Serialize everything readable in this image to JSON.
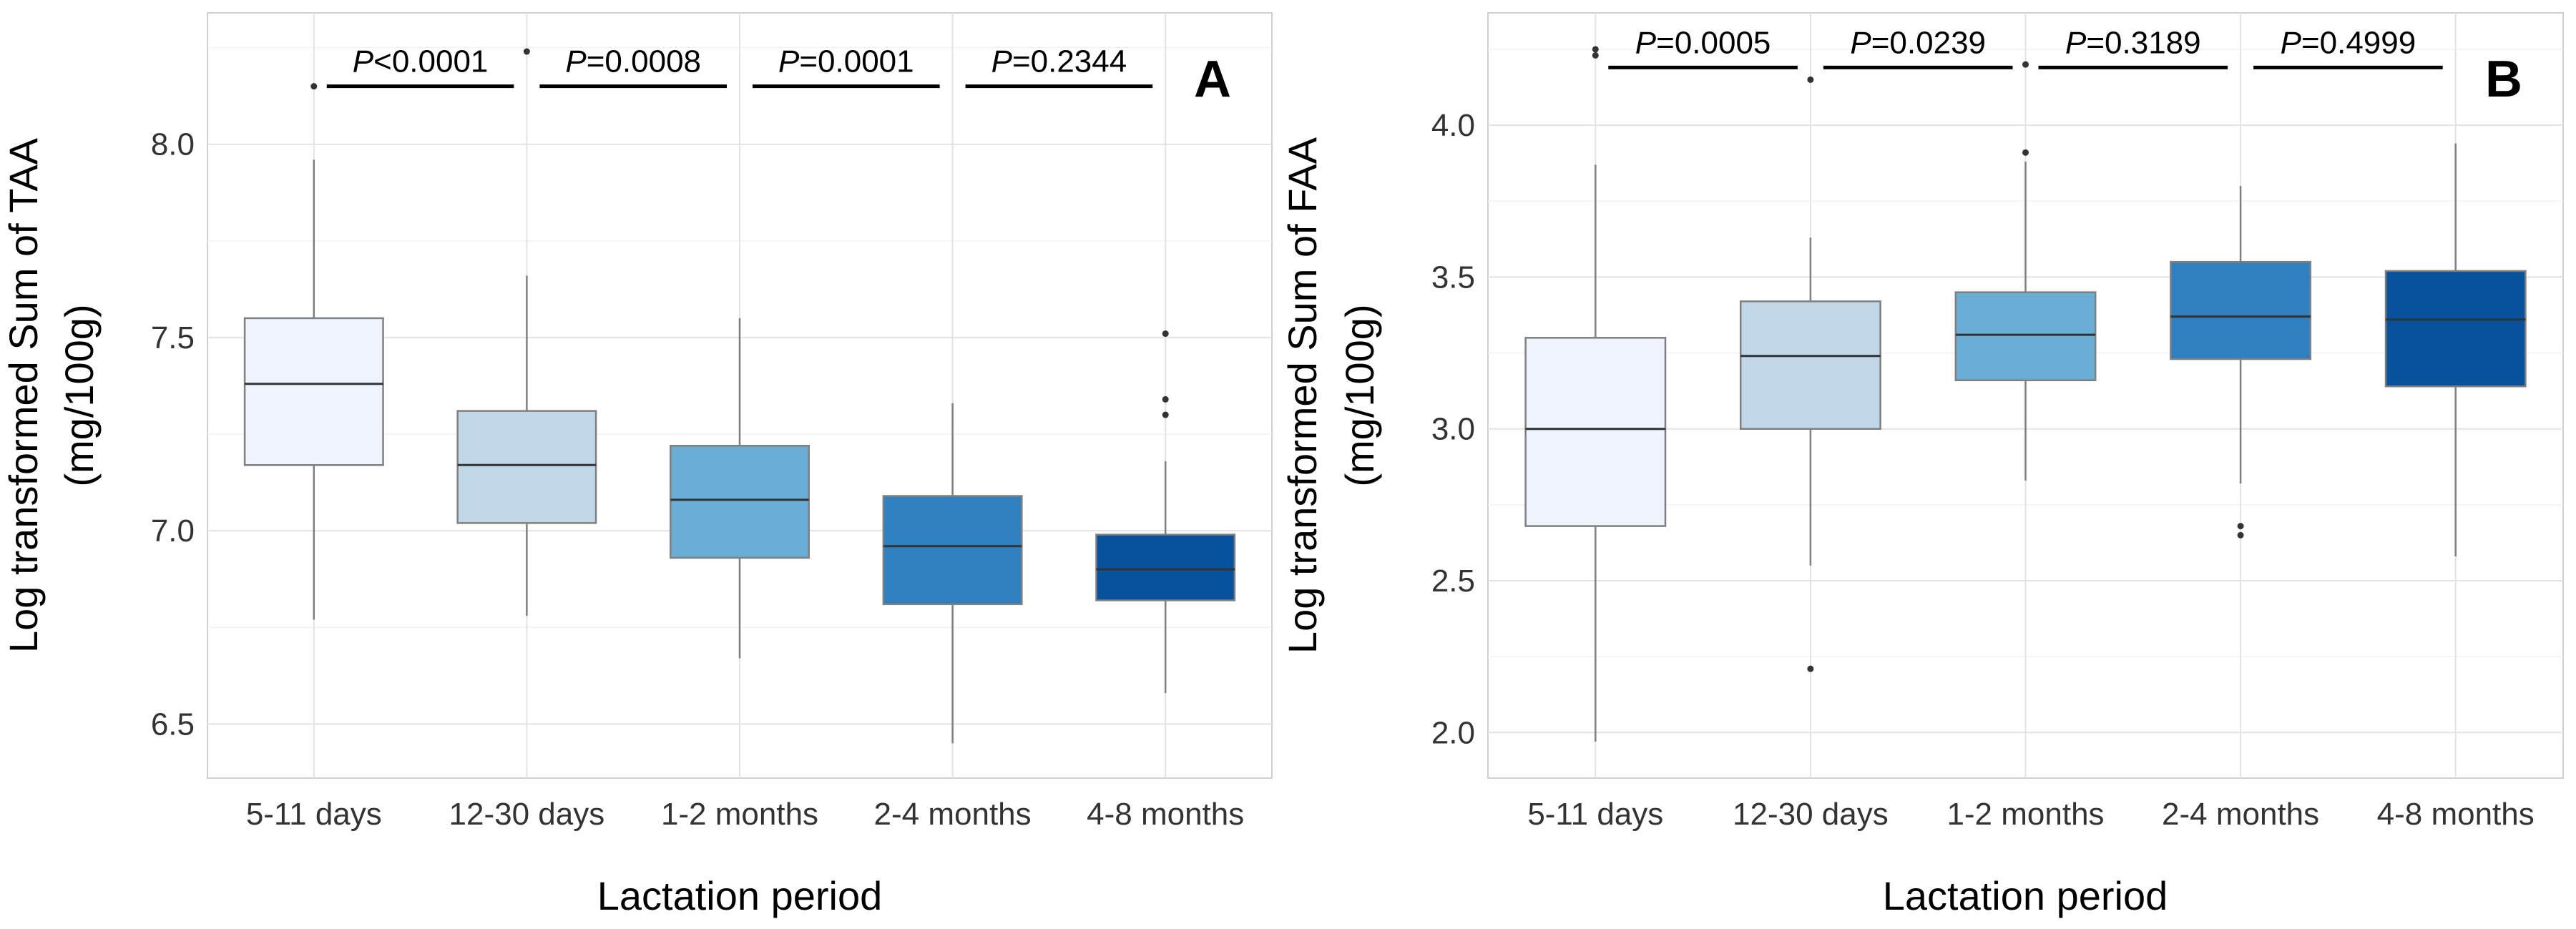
{
  "chart_data": [
    {
      "type": "box",
      "panel_label": "A",
      "xlabel": "Lactation period",
      "ylabel_line1": "Log transformed Sum of TAA",
      "ylabel_line2": "(mg/100g)",
      "categories": [
        "5-11 days",
        "12-30 days",
        "1-2 months",
        "2-4 months",
        "4-8 months"
      ],
      "ylim": [
        6.36,
        8.34
      ],
      "yticks": [
        6.5,
        7.0,
        7.5,
        8.0
      ],
      "ytick_labels": [
        "6.5",
        "7.0",
        "7.5",
        "8.0"
      ],
      "colors": [
        "#eef3fd",
        "#c0d6e9",
        "#6aaed6",
        "#2f80c0",
        "#08519c"
      ],
      "boxes": [
        {
          "whisker_low": 6.77,
          "q1": 7.17,
          "median": 7.38,
          "q3": 7.55,
          "whisker_high": 7.96,
          "outliers": [
            8.15
          ]
        },
        {
          "whisker_low": 6.78,
          "q1": 7.02,
          "median": 7.17,
          "q3": 7.31,
          "whisker_high": 7.66,
          "outliers": [
            8.24
          ]
        },
        {
          "whisker_low": 6.67,
          "q1": 6.93,
          "median": 7.08,
          "q3": 7.22,
          "whisker_high": 7.55,
          "outliers": []
        },
        {
          "whisker_low": 6.45,
          "q1": 6.81,
          "median": 6.96,
          "q3": 7.09,
          "whisker_high": 7.33,
          "outliers": []
        },
        {
          "whisker_low": 6.58,
          "q1": 6.82,
          "median": 6.9,
          "q3": 6.99,
          "whisker_high": 7.18,
          "outliers": [
            7.3,
            7.34,
            7.51
          ]
        }
      ],
      "comparisons": [
        {
          "between": [
            0,
            1
          ],
          "p_symbol": "P",
          "p_value": "<0.0001"
        },
        {
          "between": [
            1,
            2
          ],
          "p_symbol": "P",
          "p_value": "=0.0008"
        },
        {
          "between": [
            2,
            3
          ],
          "p_symbol": "P",
          "p_value": "=0.0001"
        },
        {
          "between": [
            3,
            4
          ],
          "p_symbol": "P",
          "p_value": "=0.2344"
        }
      ],
      "comparison_level": 8.15
    },
    {
      "type": "box",
      "panel_label": "B",
      "xlabel": "Lactation period",
      "ylabel_line1": "Log transformed Sum of FAA",
      "ylabel_line2": "(mg/100g)",
      "categories": [
        "5-11 days",
        "12-30 days",
        "1-2 months",
        "2-4 months",
        "4-8 months"
      ],
      "ylim": [
        1.85,
        4.37
      ],
      "yticks": [
        2.0,
        2.5,
        3.0,
        3.5,
        4.0
      ],
      "ytick_labels": [
        "2.0",
        "2.5",
        "3.0",
        "3.5",
        "4.0"
      ],
      "colors": [
        "#eef3fd",
        "#c0d6e9",
        "#6aaed6",
        "#2f80c0",
        "#08519c"
      ],
      "boxes": [
        {
          "whisker_low": 1.97,
          "q1": 2.68,
          "median": 3.0,
          "q3": 3.3,
          "whisker_high": 3.87,
          "outliers": [
            4.23,
            4.25
          ]
        },
        {
          "whisker_low": 2.55,
          "q1": 3.0,
          "median": 3.24,
          "q3": 3.42,
          "whisker_high": 3.63,
          "outliers": [
            2.21,
            4.15
          ]
        },
        {
          "whisker_low": 2.83,
          "q1": 3.16,
          "median": 3.31,
          "q3": 3.45,
          "whisker_high": 3.88,
          "outliers": [
            3.91,
            4.2
          ]
        },
        {
          "whisker_low": 2.82,
          "q1": 3.23,
          "median": 3.37,
          "q3": 3.55,
          "whisker_high": 3.8,
          "outliers": [
            2.65,
            2.68
          ]
        },
        {
          "whisker_low": 2.58,
          "q1": 3.14,
          "median": 3.36,
          "q3": 3.52,
          "whisker_high": 3.94,
          "outliers": []
        }
      ],
      "comparisons": [
        {
          "between": [
            0,
            1
          ],
          "p_symbol": "P",
          "p_value": "=0.0005"
        },
        {
          "between": [
            1,
            2
          ],
          "p_symbol": "P",
          "p_value": "=0.0239"
        },
        {
          "between": [
            2,
            3
          ],
          "p_symbol": "P",
          "p_value": "=0.3189"
        },
        {
          "between": [
            3,
            4
          ],
          "p_symbol": "P",
          "p_value": "=0.4999"
        }
      ],
      "comparison_level": 4.19
    }
  ]
}
